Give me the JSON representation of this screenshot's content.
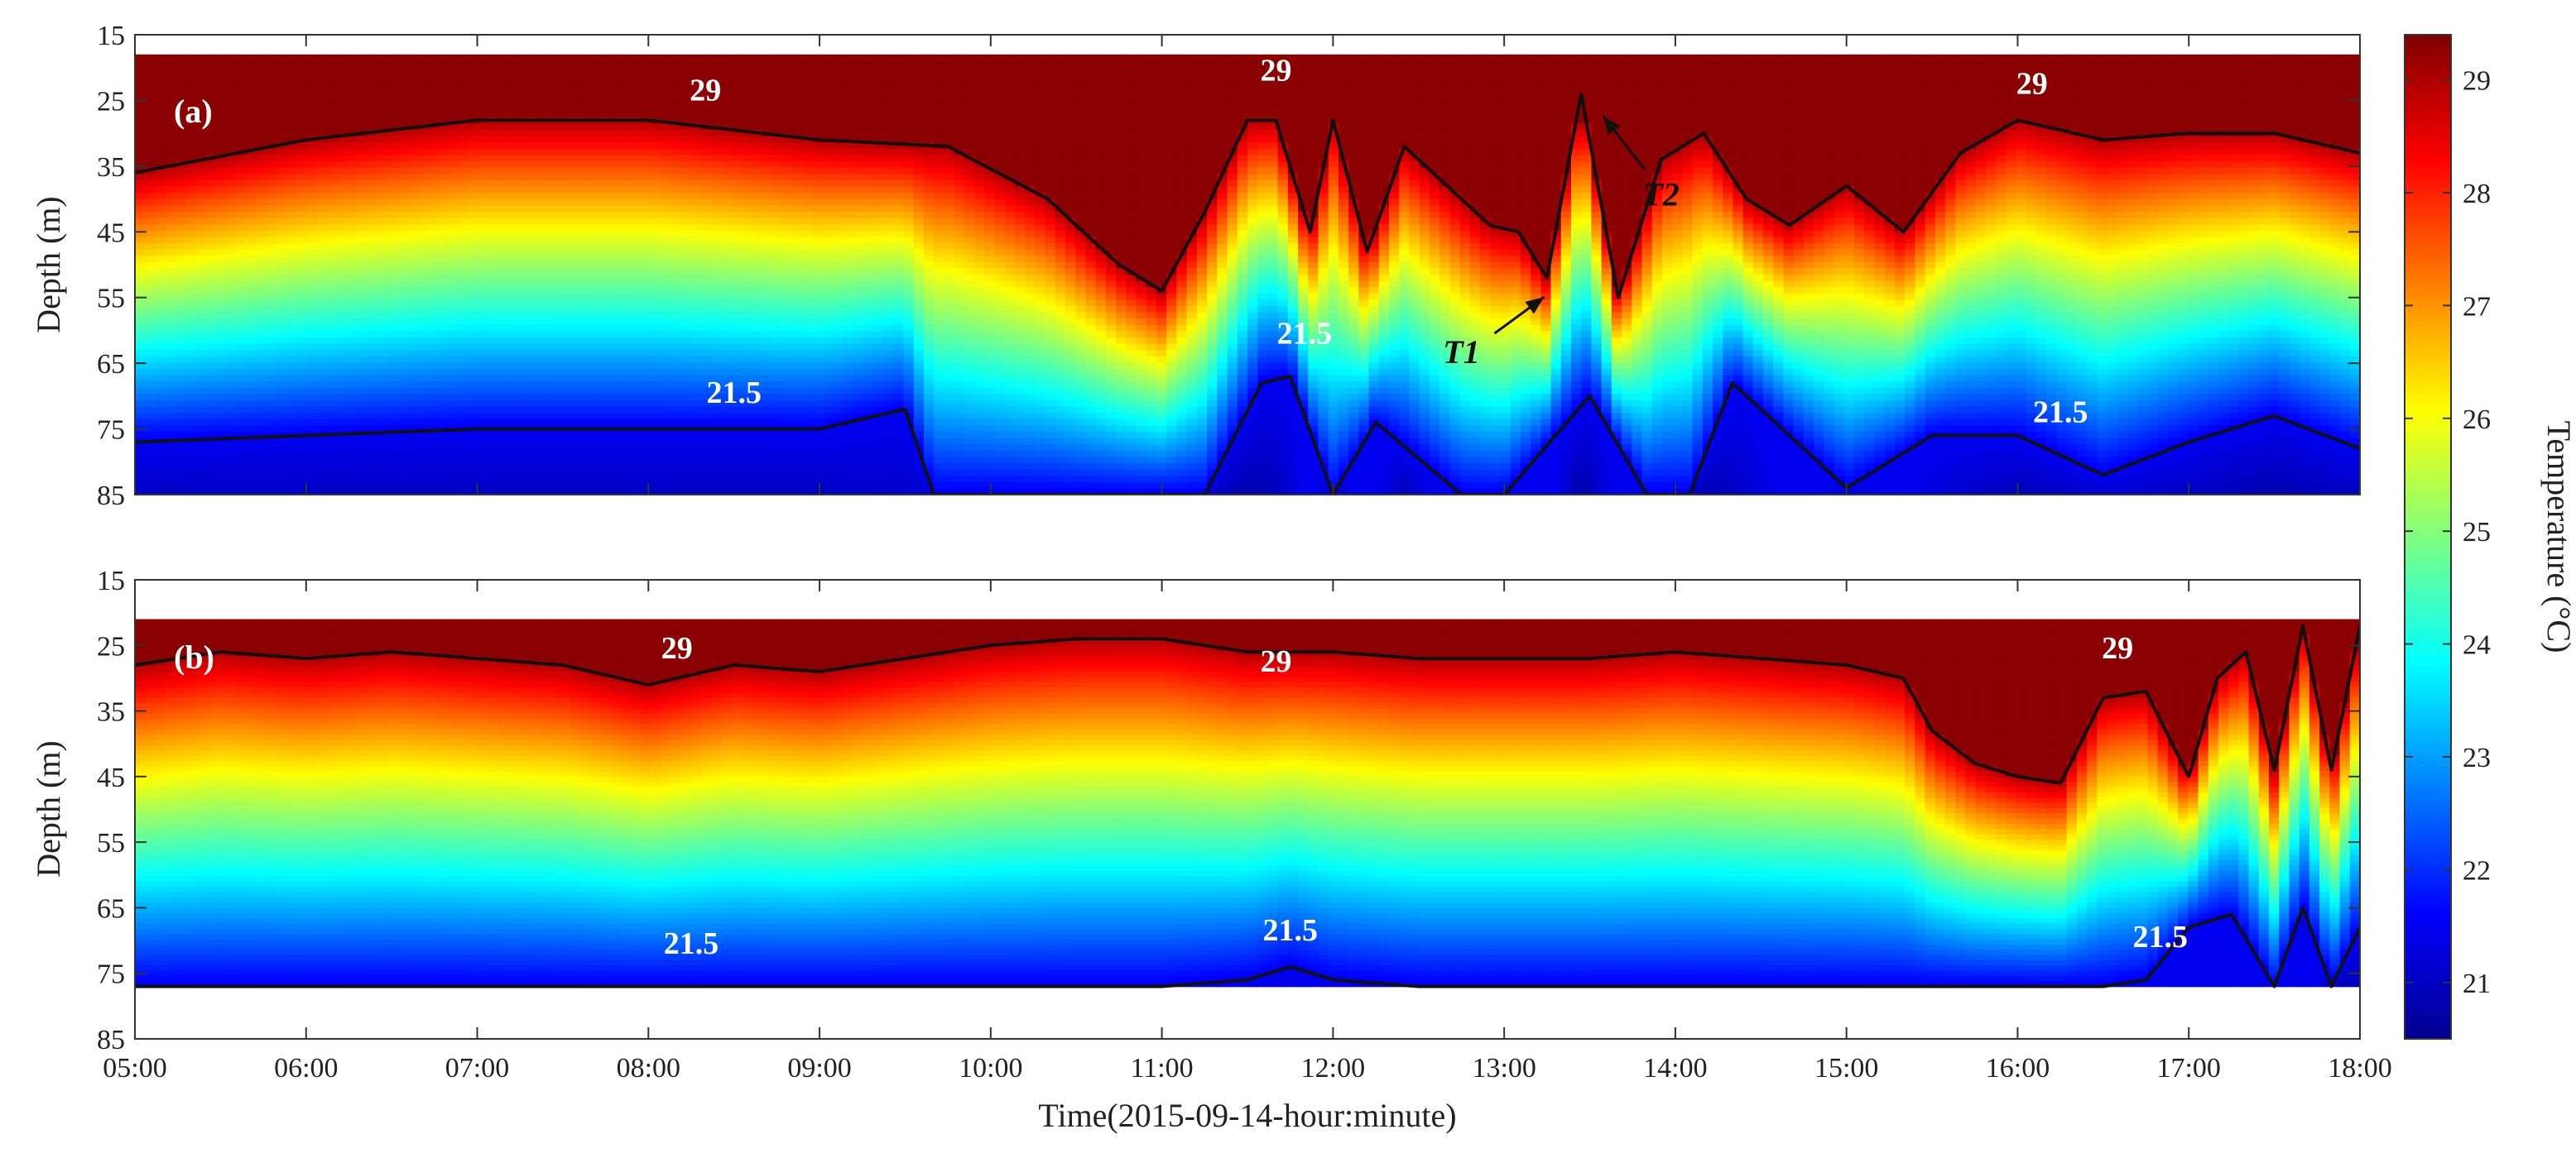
{
  "chart_data": {
    "type": "heatmap",
    "shared_xlabel": "Time(2015-09-14-hour:minute)",
    "x_ticks": [
      "05:00",
      "06:00",
      "07:00",
      "08:00",
      "09:00",
      "10:00",
      "11:00",
      "12:00",
      "13:00",
      "14:00",
      "15:00",
      "16:00",
      "17:00",
      "18:00"
    ],
    "xlim": [
      "05:00",
      "18:00"
    ],
    "colorbar": {
      "label": "Temperature (°C)",
      "range": [
        20.5,
        29.4
      ],
      "ticks": [
        "21",
        "22",
        "23",
        "24",
        "25",
        "26",
        "27",
        "28",
        "29"
      ],
      "colormap": "jet"
    },
    "panels": [
      {
        "panel_label": "(a)",
        "ylabel": "Depth (m)",
        "y_ticks": [
          "15",
          "25",
          "35",
          "45",
          "55",
          "65",
          "75",
          "85"
        ],
        "ylim": [
          15,
          85
        ],
        "y_reversed": true,
        "data_depth_range": [
          18,
          85
        ],
        "contour_levels": [
          29,
          21.5
        ],
        "contour_labels": [
          {
            "text": "29",
            "time": "08:20",
            "depth": 25
          },
          {
            "text": "29",
            "time": "11:40",
            "depth": 22
          },
          {
            "text": "29",
            "time": "16:05",
            "depth": 24
          },
          {
            "text": "21.5",
            "time": "08:30",
            "depth": 71
          },
          {
            "text": "21.5",
            "time": "11:50",
            "depth": 62
          },
          {
            "text": "21.5",
            "time": "16:15",
            "depth": 74
          }
        ],
        "annotations": [
          {
            "text": "T1",
            "time": "12:45",
            "depth": 65
          },
          {
            "text": "T2",
            "time": "13:55",
            "depth": 41
          }
        ],
        "isotherm_29_depth": {
          "time": [
            "05:00",
            "06:00",
            "07:00",
            "08:00",
            "09:00",
            "09:45",
            "10:20",
            "10:45",
            "11:00",
            "11:15",
            "11:30",
            "11:40",
            "11:52",
            "12:00",
            "12:12",
            "12:25",
            "12:40",
            "12:55",
            "13:05",
            "13:15",
            "13:27",
            "13:40",
            "13:55",
            "14:10",
            "14:25",
            "14:40",
            "15:00",
            "15:20",
            "15:40",
            "16:00",
            "16:30",
            "17:00",
            "17:30",
            "18:00"
          ],
          "values": [
            36,
            31,
            28,
            28,
            31,
            32,
            40,
            50,
            54,
            42,
            28,
            28,
            45,
            28,
            48,
            32,
            38,
            44,
            45,
            52,
            24,
            55,
            34,
            30,
            40,
            44,
            38,
            45,
            33,
            28,
            31,
            30,
            30,
            33
          ]
        },
        "isotherm_21_5_depth": {
          "time": [
            "05:00",
            "06:00",
            "07:00",
            "08:00",
            "09:00",
            "09:30",
            "09:40",
            "10:00",
            "11:00",
            "11:15",
            "11:35",
            "11:45",
            "12:00",
            "12:15",
            "12:45",
            "13:00",
            "13:30",
            "13:50",
            "14:05",
            "14:20",
            "15:00",
            "15:30",
            "16:00",
            "16:30",
            "17:00",
            "17:30",
            "18:00"
          ],
          "values": [
            77,
            76,
            75,
            75,
            75,
            72,
            85,
            85,
            85,
            85,
            68,
            67,
            85,
            74,
            85,
            85,
            70,
            85,
            85,
            68,
            84,
            76,
            76,
            82,
            77,
            73,
            78
          ]
        },
        "profile_samples": {
          "time": [
            "05:00",
            "06:00",
            "07:00",
            "08:00",
            "09:00",
            "09:45",
            "10:20",
            "10:45",
            "11:00",
            "11:15",
            "11:30",
            "11:40",
            "11:52",
            "12:00",
            "12:12",
            "12:25",
            "12:40",
            "12:55",
            "13:05",
            "13:15",
            "13:27",
            "13:40",
            "13:55",
            "14:10",
            "14:25",
            "14:40",
            "15:00",
            "15:20",
            "15:40",
            "16:00",
            "16:30",
            "17:00",
            "17:30",
            "18:00"
          ],
          "bottom_temperature": [
            21.1,
            21.1,
            21.1,
            21.1,
            21.1,
            21.2,
            21.3,
            21.5,
            21.8,
            21.1,
            20.9,
            21.0,
            21.6,
            21.0,
            21.7,
            21.0,
            21.7,
            21.3,
            21.4,
            21.7,
            20.8,
            21.6,
            21.1,
            20.9,
            21.2,
            21.6,
            21.3,
            21.5,
            21.2,
            21.0,
            21.2,
            21.1,
            20.9,
            21.1
          ]
        }
      },
      {
        "panel_label": "(b)",
        "ylabel": "Depth (m)",
        "y_ticks": [
          "15",
          "25",
          "35",
          "45",
          "55",
          "65",
          "75",
          "85"
        ],
        "ylim": [
          15,
          85
        ],
        "y_reversed": true,
        "data_depth_range": [
          21,
          77
        ],
        "contour_levels": [
          29,
          21.5
        ],
        "contour_labels": [
          {
            "text": "29",
            "time": "08:10",
            "depth": 27
          },
          {
            "text": "29",
            "time": "11:40",
            "depth": 29
          },
          {
            "text": "29",
            "time": "16:35",
            "depth": 27
          },
          {
            "text": "21.5",
            "time": "08:15",
            "depth": 72
          },
          {
            "text": "21.5",
            "time": "11:45",
            "depth": 70
          },
          {
            "text": "21.5",
            "time": "16:50",
            "depth": 71
          }
        ],
        "annotations": [],
        "isotherm_29_depth": {
          "time": [
            "05:00",
            "05:30",
            "06:00",
            "06:30",
            "07:00",
            "07:30",
            "08:00",
            "08:30",
            "09:00",
            "09:30",
            "10:00",
            "10:30",
            "11:00",
            "11:30",
            "12:00",
            "12:30",
            "13:00",
            "13:30",
            "14:00",
            "14:30",
            "15:00",
            "15:20",
            "15:30",
            "15:45",
            "16:00",
            "16:15",
            "16:30",
            "16:45",
            "17:00",
            "17:10",
            "17:20",
            "17:30",
            "17:40",
            "17:50",
            "18:00"
          ],
          "values": [
            28,
            26,
            27,
            26,
            27,
            28,
            31,
            28,
            29,
            27,
            25,
            24,
            24,
            26,
            26,
            27,
            27,
            27,
            26,
            27,
            28,
            30,
            38,
            43,
            45,
            46,
            33,
            32,
            45,
            30,
            26,
            44,
            22,
            44,
            22
          ]
        },
        "isotherm_21_5_depth": {
          "time": [
            "05:00",
            "06:00",
            "07:00",
            "08:00",
            "09:00",
            "10:00",
            "11:00",
            "11:30",
            "11:45",
            "12:00",
            "12:30",
            "13:00",
            "14:00",
            "15:00",
            "15:15",
            "16:00",
            "16:30",
            "16:45",
            "17:00",
            "17:15",
            "17:30",
            "17:40",
            "17:50",
            "18:00"
          ],
          "values": [
            77,
            77,
            77,
            77,
            77,
            77,
            77,
            76,
            74,
            76,
            77,
            77,
            77,
            77,
            77,
            77,
            77,
            76,
            68,
            66,
            77,
            65,
            77,
            68
          ]
        },
        "profile_samples": {
          "time": [
            "05:00",
            "05:30",
            "06:00",
            "06:30",
            "07:00",
            "07:30",
            "08:00",
            "08:30",
            "09:00",
            "09:30",
            "10:00",
            "10:30",
            "11:00",
            "11:30",
            "12:00",
            "12:30",
            "13:00",
            "13:30",
            "14:00",
            "14:30",
            "15:00",
            "15:20",
            "15:30",
            "15:45",
            "16:00",
            "16:15",
            "16:30",
            "16:45",
            "17:00",
            "17:10",
            "17:20",
            "17:30",
            "17:40",
            "17:50",
            "18:00"
          ],
          "bottom_temperature": [
            22.3,
            22.2,
            22.2,
            22.1,
            22.2,
            22.1,
            22.2,
            22.1,
            22.2,
            22.1,
            22.2,
            22.0,
            22.0,
            21.8,
            21.7,
            21.7,
            21.7,
            21.7,
            21.7,
            21.7,
            21.6,
            21.7,
            22.2,
            22.4,
            22.5,
            22.4,
            21.8,
            21.7,
            21.4,
            21.6,
            22.3,
            20.9,
            22.4,
            20.9,
            21.1
          ]
        }
      }
    ]
  }
}
